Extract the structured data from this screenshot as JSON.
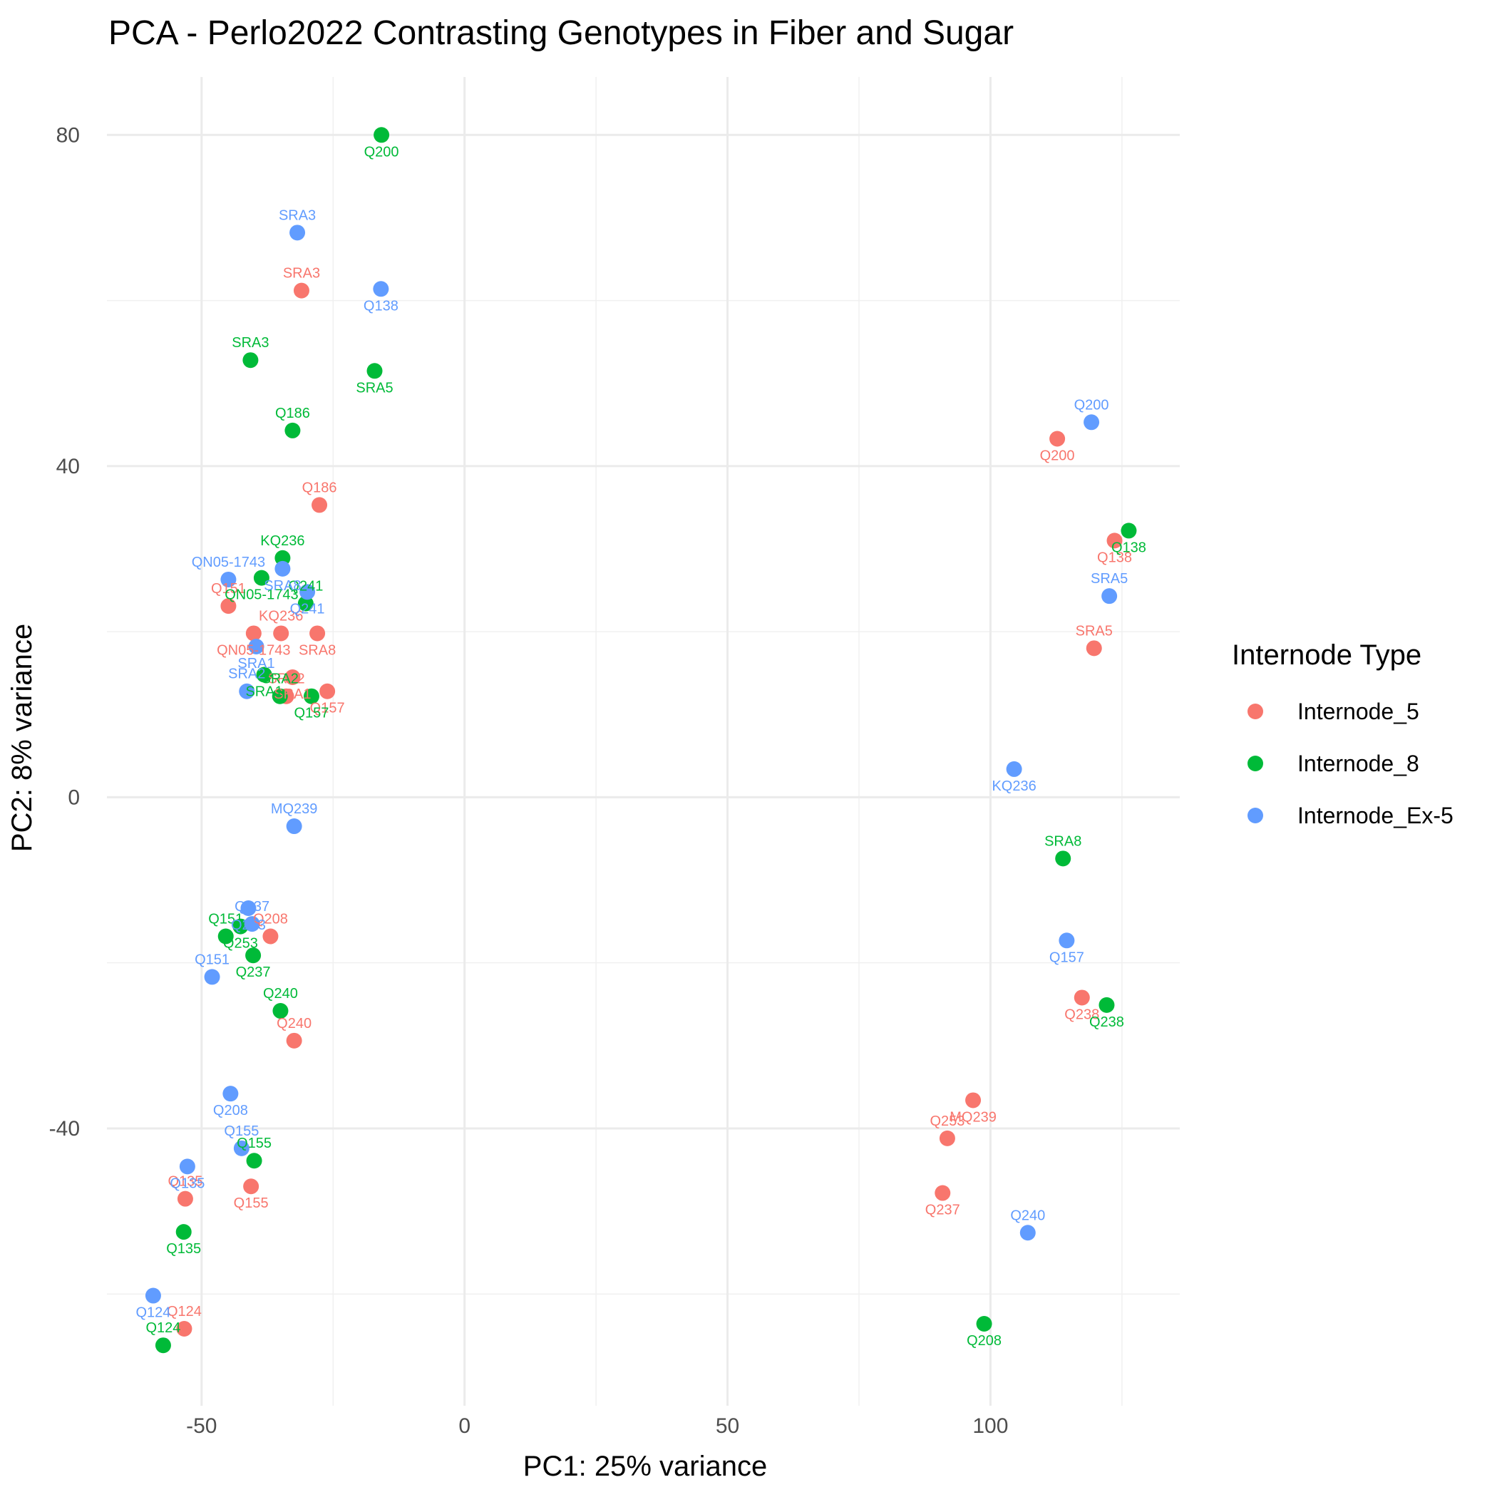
{
  "chart_data": {
    "type": "scatter",
    "title": "PCA - Perlo2022 Contrasting Genotypes in Fiber and Sugar",
    "xlabel": "PC1: 25% variance",
    "ylabel": "PC2: 8% variance",
    "xlim": [
      -68,
      136
    ],
    "ylim": [
      -73.5,
      87
    ],
    "xticks": [
      -50,
      0,
      50,
      100
    ],
    "xtick_labels": [
      "-50",
      "0",
      "50",
      "100"
    ],
    "yticks": [
      -40,
      0,
      40,
      80
    ],
    "ytick_labels": [
      "-40",
      "0",
      "40",
      "80"
    ],
    "grid": true,
    "legend": {
      "title": "Internode Type",
      "position": "right"
    },
    "series": [
      {
        "name": "Internode_5",
        "color": "#F8766D",
        "points": [
          {
            "label": "SRA3",
            "x": -31.0,
            "y": 61.2
          },
          {
            "label": "Q200",
            "x": 112.7,
            "y": 43.3
          },
          {
            "label": "Q186",
            "x": -27.6,
            "y": 35.3
          },
          {
            "label": "Q138",
            "x": 123.6,
            "y": 31.0
          },
          {
            "label": "Q151",
            "x": -44.9,
            "y": 23.1
          },
          {
            "label": "QN05-1743",
            "x": -40.1,
            "y": 19.8
          },
          {
            "label": "KQ236",
            "x": -34.9,
            "y": 19.8
          },
          {
            "label": "SRA8",
            "x": -28.0,
            "y": 19.8
          },
          {
            "label": "SRA5",
            "x": 119.7,
            "y": 18.0
          },
          {
            "label": "SRA1",
            "x": -32.7,
            "y": 14.5
          },
          {
            "label": "SRA2",
            "x": -33.9,
            "y": 12.2
          },
          {
            "label": "Q157",
            "x": -26.1,
            "y": 12.8
          },
          {
            "label": "Q208",
            "x": -36.9,
            "y": -16.8
          },
          {
            "label": "Q238",
            "x": 117.4,
            "y": -24.2
          },
          {
            "label": "Q240",
            "x": -32.4,
            "y": -29.4
          },
          {
            "label": "MQ239",
            "x": 96.7,
            "y": -36.6
          },
          {
            "label": "Q253",
            "x": 91.8,
            "y": -41.2
          },
          {
            "label": "Q237",
            "x": 90.9,
            "y": -47.8
          },
          {
            "label": "Q135",
            "x": -53.1,
            "y": -48.5
          },
          {
            "label": "Q155",
            "x": -40.6,
            "y": -47.0
          },
          {
            "label": "Q124",
            "x": -53.3,
            "y": -64.2
          }
        ]
      },
      {
        "name": "Internode_8",
        "color": "#00BA38",
        "points": [
          {
            "label": "Q200",
            "x": -15.8,
            "y": 80.0
          },
          {
            "label": "SRA3",
            "x": -40.7,
            "y": 52.8
          },
          {
            "label": "SRA5",
            "x": -17.1,
            "y": 51.5
          },
          {
            "label": "Q186",
            "x": -32.7,
            "y": 44.3
          },
          {
            "label": "Q138",
            "x": 126.3,
            "y": 32.2
          },
          {
            "label": "KQ236",
            "x": -34.6,
            "y": 28.9
          },
          {
            "label": "QN05-1743",
            "x": -38.6,
            "y": 26.5
          },
          {
            "label": "Q241",
            "x": -30.2,
            "y": 23.4
          },
          {
            "label": "SRA1",
            "x": -38.1,
            "y": 14.8
          },
          {
            "label": "SRA2",
            "x": -35.1,
            "y": 12.2
          },
          {
            "label": "Q157",
            "x": -29.1,
            "y": 12.2
          },
          {
            "label": "SRA8",
            "x": 113.8,
            "y": -7.4
          },
          {
            "label": "Q253",
            "x": -42.6,
            "y": -15.6
          },
          {
            "label": "Q151",
            "x": -45.4,
            "y": -16.8
          },
          {
            "label": "Q237",
            "x": -40.2,
            "y": -19.1
          },
          {
            "label": "Q240",
            "x": -35.0,
            "y": -25.8
          },
          {
            "label": "Q238",
            "x": 122.1,
            "y": -25.1
          },
          {
            "label": "Q155",
            "x": -40.0,
            "y": -43.9
          },
          {
            "label": "Q135",
            "x": -53.4,
            "y": -52.5
          },
          {
            "label": "Q124",
            "x": -57.3,
            "y": -66.2
          },
          {
            "label": "Q208",
            "x": 98.8,
            "y": -63.6
          }
        ]
      },
      {
        "name": "Internode_Ex-5",
        "color": "#619CFF",
        "points": [
          {
            "label": "SRA3",
            "x": -31.8,
            "y": 68.2
          },
          {
            "label": "Q138",
            "x": -15.9,
            "y": 61.4
          },
          {
            "label": "Q200",
            "x": 119.2,
            "y": 45.3
          },
          {
            "label": "SRA8",
            "x": -34.6,
            "y": 27.6
          },
          {
            "label": "QN05-1743",
            "x": -44.9,
            "y": 26.3
          },
          {
            "label": "Q241",
            "x": -29.9,
            "y": 24.8
          },
          {
            "label": "SRA5",
            "x": 122.6,
            "y": 24.3
          },
          {
            "label": "SRA1",
            "x": -39.6,
            "y": 18.2
          },
          {
            "label": "SRA2",
            "x": -41.4,
            "y": 12.8
          },
          {
            "label": "KQ236",
            "x": 104.5,
            "y": 3.4
          },
          {
            "label": "MQ239",
            "x": -32.4,
            "y": -3.5
          },
          {
            "label": "Q253",
            "x": -41.1,
            "y": -13.4
          },
          {
            "label": "Q237",
            "x": -40.4,
            "y": -15.3
          },
          {
            "label": "Q157",
            "x": 114.5,
            "y": -17.3
          },
          {
            "label": "Q151",
            "x": -48.0,
            "y": -21.7
          },
          {
            "label": "Q208",
            "x": -44.5,
            "y": -35.8
          },
          {
            "label": "Q155",
            "x": -42.4,
            "y": -42.4
          },
          {
            "label": "Q135",
            "x": -52.7,
            "y": -44.6
          },
          {
            "label": "Q240",
            "x": 107.1,
            "y": -52.6
          },
          {
            "label": "Q124",
            "x": -59.2,
            "y": -60.2
          }
        ]
      }
    ]
  }
}
